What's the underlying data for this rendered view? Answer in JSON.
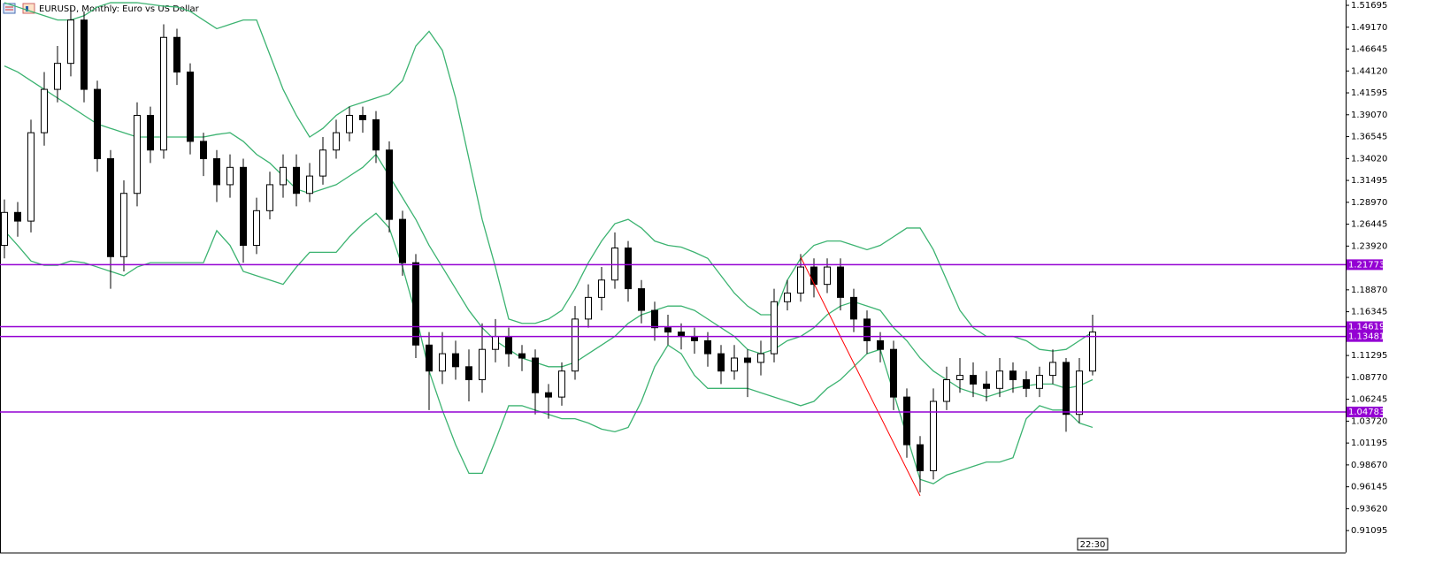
{
  "chart_data": {
    "type": "candlestick",
    "title": "EURUSD, Monthly:  Euro vs US Dollar",
    "time_label": "22:30",
    "up_color": "#ffffff",
    "down_color": "#000000",
    "open": [
      1.24,
      1.278,
      1.268,
      1.37,
      1.42,
      1.45,
      1.5,
      1.42,
      1.34,
      1.227,
      1.3,
      1.39,
      1.35,
      1.48,
      1.44,
      1.36,
      1.34,
      1.31,
      1.33,
      1.24,
      1.28,
      1.31,
      1.33,
      1.3,
      1.32,
      1.35,
      1.37,
      1.39,
      1.385,
      1.35,
      1.27,
      1.22,
      1.125,
      1.095,
      1.115,
      1.1,
      1.085,
      1.12,
      1.135,
      1.115,
      1.11,
      1.07,
      1.065,
      1.095,
      1.155,
      1.18,
      1.2,
      1.237,
      1.19,
      1.165,
      1.145,
      1.14,
      1.135,
      1.13,
      1.115,
      1.095,
      1.11,
      1.105,
      1.115,
      1.175,
      1.185,
      1.215,
      1.195,
      1.215,
      1.18,
      1.155,
      1.13,
      1.12,
      1.065,
      1.01,
      0.98,
      1.06,
      1.085,
      1.09,
      1.08,
      1.075,
      1.095,
      1.085,
      1.075,
      1.09,
      1.105,
      1.045,
      1.095
    ],
    "high": [
      1.293,
      1.29,
      1.385,
      1.44,
      1.47,
      1.515,
      1.51,
      1.43,
      1.35,
      1.315,
      1.405,
      1.4,
      1.495,
      1.49,
      1.45,
      1.37,
      1.35,
      1.345,
      1.34,
      1.295,
      1.325,
      1.345,
      1.345,
      1.335,
      1.365,
      1.385,
      1.4,
      1.4,
      1.395,
      1.36,
      1.28,
      1.23,
      1.14,
      1.14,
      1.13,
      1.12,
      1.15,
      1.155,
      1.145,
      1.125,
      1.12,
      1.08,
      1.105,
      1.17,
      1.195,
      1.215,
      1.255,
      1.245,
      1.2,
      1.175,
      1.16,
      1.15,
      1.145,
      1.14,
      1.125,
      1.125,
      1.12,
      1.13,
      1.19,
      1.2,
      1.23,
      1.225,
      1.225,
      1.225,
      1.19,
      1.165,
      1.14,
      1.13,
      1.075,
      1.02,
      1.075,
      1.1,
      1.11,
      1.105,
      1.095,
      1.11,
      1.105,
      1.095,
      1.1,
      1.12,
      1.11,
      1.11,
      1.16
    ],
    "low": [
      1.225,
      1.25,
      1.255,
      1.355,
      1.405,
      1.435,
      1.405,
      1.325,
      1.19,
      1.21,
      1.285,
      1.335,
      1.34,
      1.425,
      1.345,
      1.32,
      1.29,
      1.295,
      1.22,
      1.23,
      1.27,
      1.295,
      1.285,
      1.29,
      1.31,
      1.34,
      1.36,
      1.37,
      1.335,
      1.255,
      1.205,
      1.11,
      1.05,
      1.08,
      1.085,
      1.06,
      1.07,
      1.105,
      1.1,
      1.095,
      1.045,
      1.04,
      1.055,
      1.085,
      1.145,
      1.165,
      1.19,
      1.175,
      1.15,
      1.13,
      1.125,
      1.12,
      1.115,
      1.1,
      1.08,
      1.085,
      1.065,
      1.09,
      1.105,
      1.165,
      1.175,
      1.18,
      1.185,
      1.165,
      1.14,
      1.115,
      1.105,
      1.05,
      0.995,
      0.955,
      0.97,
      1.05,
      1.07,
      1.065,
      1.06,
      1.065,
      1.07,
      1.065,
      1.065,
      1.08,
      1.025,
      1.035,
      1.09
    ],
    "close": [
      1.278,
      1.268,
      1.37,
      1.42,
      1.45,
      1.5,
      1.42,
      1.34,
      1.227,
      1.3,
      1.39,
      1.35,
      1.48,
      1.44,
      1.36,
      1.34,
      1.31,
      1.33,
      1.24,
      1.28,
      1.31,
      1.33,
      1.3,
      1.32,
      1.35,
      1.37,
      1.39,
      1.385,
      1.35,
      1.27,
      1.22,
      1.125,
      1.095,
      1.115,
      1.1,
      1.085,
      1.12,
      1.135,
      1.115,
      1.11,
      1.07,
      1.065,
      1.095,
      1.155,
      1.18,
      1.2,
      1.237,
      1.19,
      1.165,
      1.145,
      1.14,
      1.135,
      1.13,
      1.115,
      1.095,
      1.11,
      1.105,
      1.115,
      1.175,
      1.185,
      1.215,
      1.195,
      1.215,
      1.18,
      1.155,
      1.13,
      1.12,
      1.065,
      1.01,
      0.98,
      1.06,
      1.085,
      1.09,
      1.08,
      1.075,
      1.095,
      1.085,
      1.075,
      1.09,
      1.105,
      1.045,
      1.095,
      1.14
    ],
    "bands": {
      "color": "#3cb371",
      "upper": [
        1.52,
        1.515,
        1.51,
        1.505,
        1.5,
        1.5,
        1.505,
        1.515,
        1.52,
        1.52,
        1.52,
        1.518,
        1.516,
        1.515,
        1.51,
        1.5,
        1.49,
        1.495,
        1.5,
        1.5,
        1.46,
        1.42,
        1.39,
        1.365,
        1.375,
        1.39,
        1.4,
        1.405,
        1.41,
        1.415,
        1.43,
        1.47,
        1.487,
        1.465,
        1.41,
        1.34,
        1.27,
        1.215,
        1.155,
        1.15,
        1.15,
        1.155,
        1.165,
        1.19,
        1.22,
        1.245,
        1.265,
        1.27,
        1.26,
        1.245,
        1.24,
        1.238,
        1.232,
        1.225,
        1.205,
        1.185,
        1.17,
        1.16,
        1.16,
        1.2,
        1.225,
        1.24,
        1.245,
        1.245,
        1.24,
        1.235,
        1.24,
        1.25,
        1.26,
        1.26,
        1.235,
        1.2,
        1.165,
        1.145,
        1.135,
        1.135,
        1.135,
        1.13,
        1.12,
        1.118,
        1.12,
        1.13,
        1.14
      ],
      "middle": [
        1.447,
        1.44,
        1.43,
        1.42,
        1.41,
        1.4,
        1.39,
        1.38,
        1.375,
        1.37,
        1.365,
        1.365,
        1.365,
        1.365,
        1.365,
        1.365,
        1.368,
        1.37,
        1.36,
        1.345,
        1.335,
        1.32,
        1.305,
        1.3,
        1.305,
        1.31,
        1.32,
        1.33,
        1.345,
        1.32,
        1.295,
        1.27,
        1.24,
        1.215,
        1.19,
        1.165,
        1.145,
        1.13,
        1.12,
        1.11,
        1.105,
        1.1,
        1.1,
        1.105,
        1.115,
        1.125,
        1.135,
        1.15,
        1.16,
        1.165,
        1.17,
        1.17,
        1.165,
        1.155,
        1.145,
        1.135,
        1.12,
        1.115,
        1.12,
        1.13,
        1.135,
        1.145,
        1.16,
        1.17,
        1.175,
        1.17,
        1.165,
        1.145,
        1.13,
        1.11,
        1.095,
        1.085,
        1.075,
        1.07,
        1.065,
        1.07,
        1.075,
        1.078,
        1.08,
        1.08,
        1.075,
        1.078,
        1.085
      ],
      "lower": [
        1.257,
        1.24,
        1.222,
        1.217,
        1.217,
        1.222,
        1.22,
        1.215,
        1.21,
        1.205,
        1.215,
        1.22,
        1.22,
        1.22,
        1.22,
        1.22,
        1.257,
        1.24,
        1.21,
        1.205,
        1.2,
        1.195,
        1.215,
        1.232,
        1.232,
        1.232,
        1.25,
        1.265,
        1.277,
        1.26,
        1.215,
        1.16,
        1.095,
        1.05,
        1.01,
        0.977,
        0.977,
        1.015,
        1.055,
        1.055,
        1.05,
        1.045,
        1.04,
        1.04,
        1.035,
        1.028,
        1.025,
        1.03,
        1.06,
        1.1,
        1.125,
        1.115,
        1.09,
        1.075,
        1.075,
        1.075,
        1.075,
        1.07,
        1.065,
        1.06,
        1.055,
        1.06,
        1.075,
        1.085,
        1.1,
        1.115,
        1.12,
        1.07,
        1.02,
        0.97,
        0.965,
        0.975,
        0.98,
        0.985,
        0.99,
        0.99,
        0.995,
        1.04,
        1.055,
        1.05,
        1.05,
        1.035,
        1.03
      ]
    },
    "levels": {
      "color": "#9400d3",
      "values": [
        1.21773,
        1.14619,
        1.13481,
        1.04783
      ]
    },
    "trendline": {
      "color": "#ff0000",
      "start_index": 60,
      "end_index": 69,
      "start": 1.2265,
      "end": 0.951
    },
    "ylim": [
      0.8856,
      1.5231
    ],
    "yticks": [
      1.51695,
      {
        "value": 1.4917,
        "label": "1.49170"
      },
      1.46645,
      {
        "value": 1.4412,
        "label": "1.44120"
      },
      1.41595,
      {
        "value": 1.3907,
        "label": "1.39070"
      },
      1.36545,
      {
        "value": 1.3402,
        "label": "1.34020"
      },
      1.31495,
      {
        "value": 1.2897,
        "label": "1.28970"
      },
      1.26445,
      {
        "value": 1.2392,
        "label": "1.23920"
      },
      {
        "value": 1.1887,
        "label": "1.18870"
      },
      1.16345,
      1.11295,
      {
        "value": 1.0877,
        "label": "1.08770"
      },
      1.06245,
      {
        "value": 1.0372,
        "label": "1.03720"
      },
      1.01195,
      {
        "value": 0.9867,
        "label": "0.98670"
      },
      0.96145,
      {
        "value": 0.9362,
        "label": "0.93620"
      },
      0.91095
    ]
  }
}
